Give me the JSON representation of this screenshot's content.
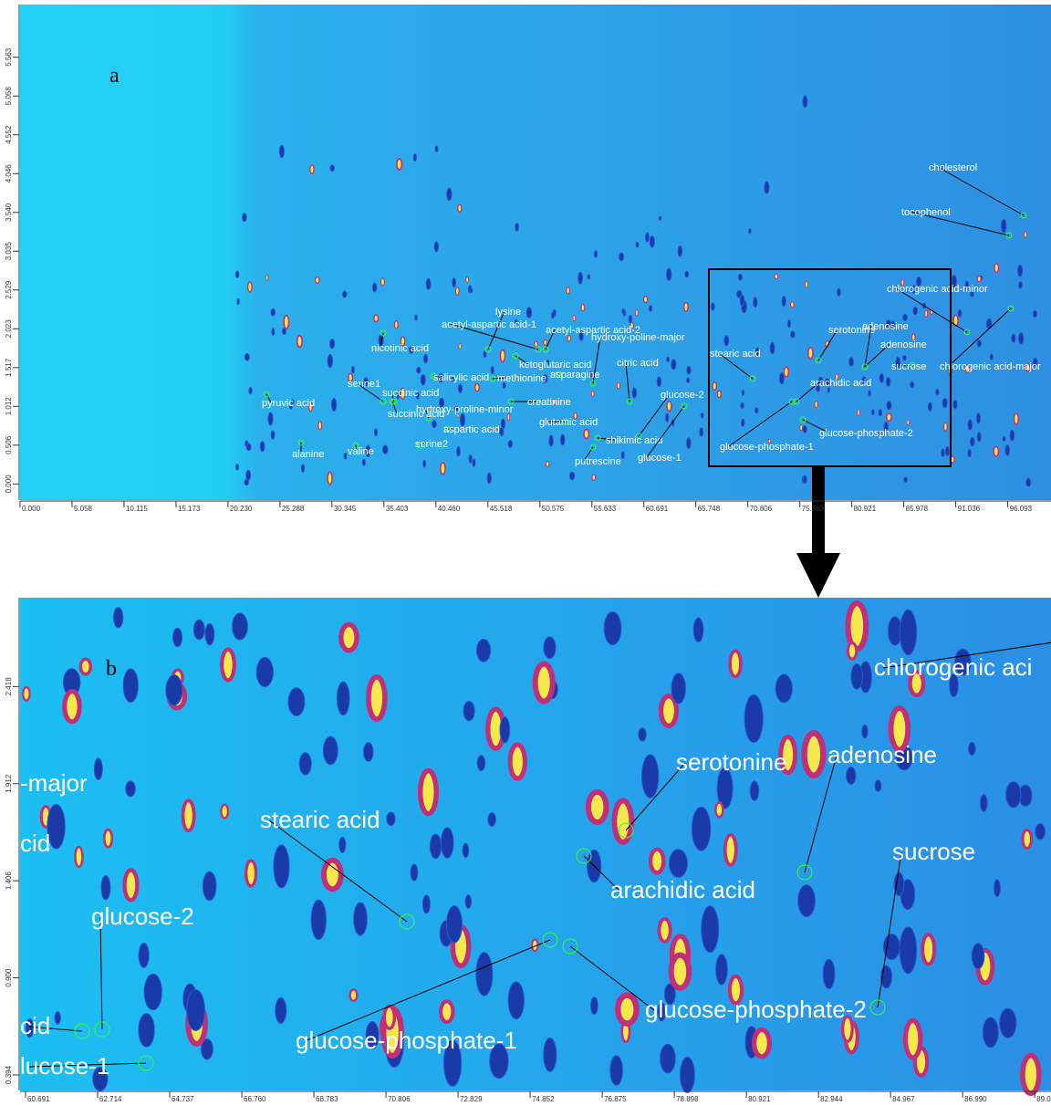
{
  "chart_data": [
    {
      "type": "heatmap",
      "panel_label": "a",
      "xlim": [
        0,
        100.3
      ],
      "xticks": [
        {
          "value": 0,
          "label": "0.000"
        },
        5.058,
        10.115,
        15.173,
        {
          "value": 20.23,
          "label": "20.230"
        },
        25.288,
        30.345,
        35.403,
        {
          "value": 40.46,
          "label": "40.460"
        },
        45.518,
        50.575,
        55.633,
        60.691,
        65.748,
        70.806,
        75.863,
        80.921,
        85.978,
        91.036,
        96.093
      ],
      "ylim": [
        -0.21,
        6.25
      ],
      "yticks": [
        {
          "value": 0,
          "label": "0.000"
        },
        0.506,
        1.012,
        1.517,
        2.023,
        2.529,
        3.035,
        {
          "value": 3.54,
          "label": "3.540"
        },
        4.046,
        4.552,
        5.058,
        5.563
      ],
      "annotations": [
        "cholesterol",
        "tocophenol",
        "chlorogenic acid-minor",
        "serotonine",
        "adenosine",
        "adenosine",
        "stearic acid",
        "arachidic acid",
        "sucrose",
        "chlorogenic acid-major",
        "glucose-phosphate-2",
        "glucose-phosphate-1",
        "lysine",
        "acetyl-aspartic acid-1",
        "acetyl-aspartic acid-2",
        "hydroxy-poline-major",
        "nicotinic acid",
        "ketoglutaric acid",
        "citric acid",
        "salicylic acid",
        "methionine",
        "asparagine",
        "serine1",
        "succinic acid",
        "glucose-2",
        "pyruvic acid",
        "hydroxy-proline-minor",
        "creatinine",
        "succinic acid",
        "glutamic acid",
        "aspartic acid",
        "shikimic acid",
        "serine2",
        "alanine",
        "valine",
        "putrescine",
        "glucose-1"
      ]
    },
    {
      "type": "heatmap",
      "panel_label": "b",
      "xlim": [
        60.537,
        89.47
      ],
      "xticks": [
        60.691,
        62.714,
        64.737,
        {
          "value": 66.76,
          "label": "66.760"
        },
        68.783,
        70.806,
        72.829,
        74.852,
        76.875,
        78.898,
        80.921,
        82.944,
        84.967,
        {
          "value": 86.99,
          "label": "86.990"
        },
        {
          "value": 89.013,
          "label": "89.01"
        }
      ],
      "ylim": [
        0.313,
        2.881
      ],
      "yticks": [
        0.394,
        {
          "value": 0.9,
          "label": "0.900"
        },
        1.406,
        1.912,
        2.418
      ],
      "annotations": [
        "chlorogenic aci",
        "serotonine",
        "adenosine",
        "-major",
        "cid",
        "stearic acid",
        "sucrose",
        "arachidic acid",
        "glucose-2",
        "glucose-phosphate-2",
        "cid",
        "glucose-phosphate-1",
        "lucose-1"
      ]
    }
  ]
}
